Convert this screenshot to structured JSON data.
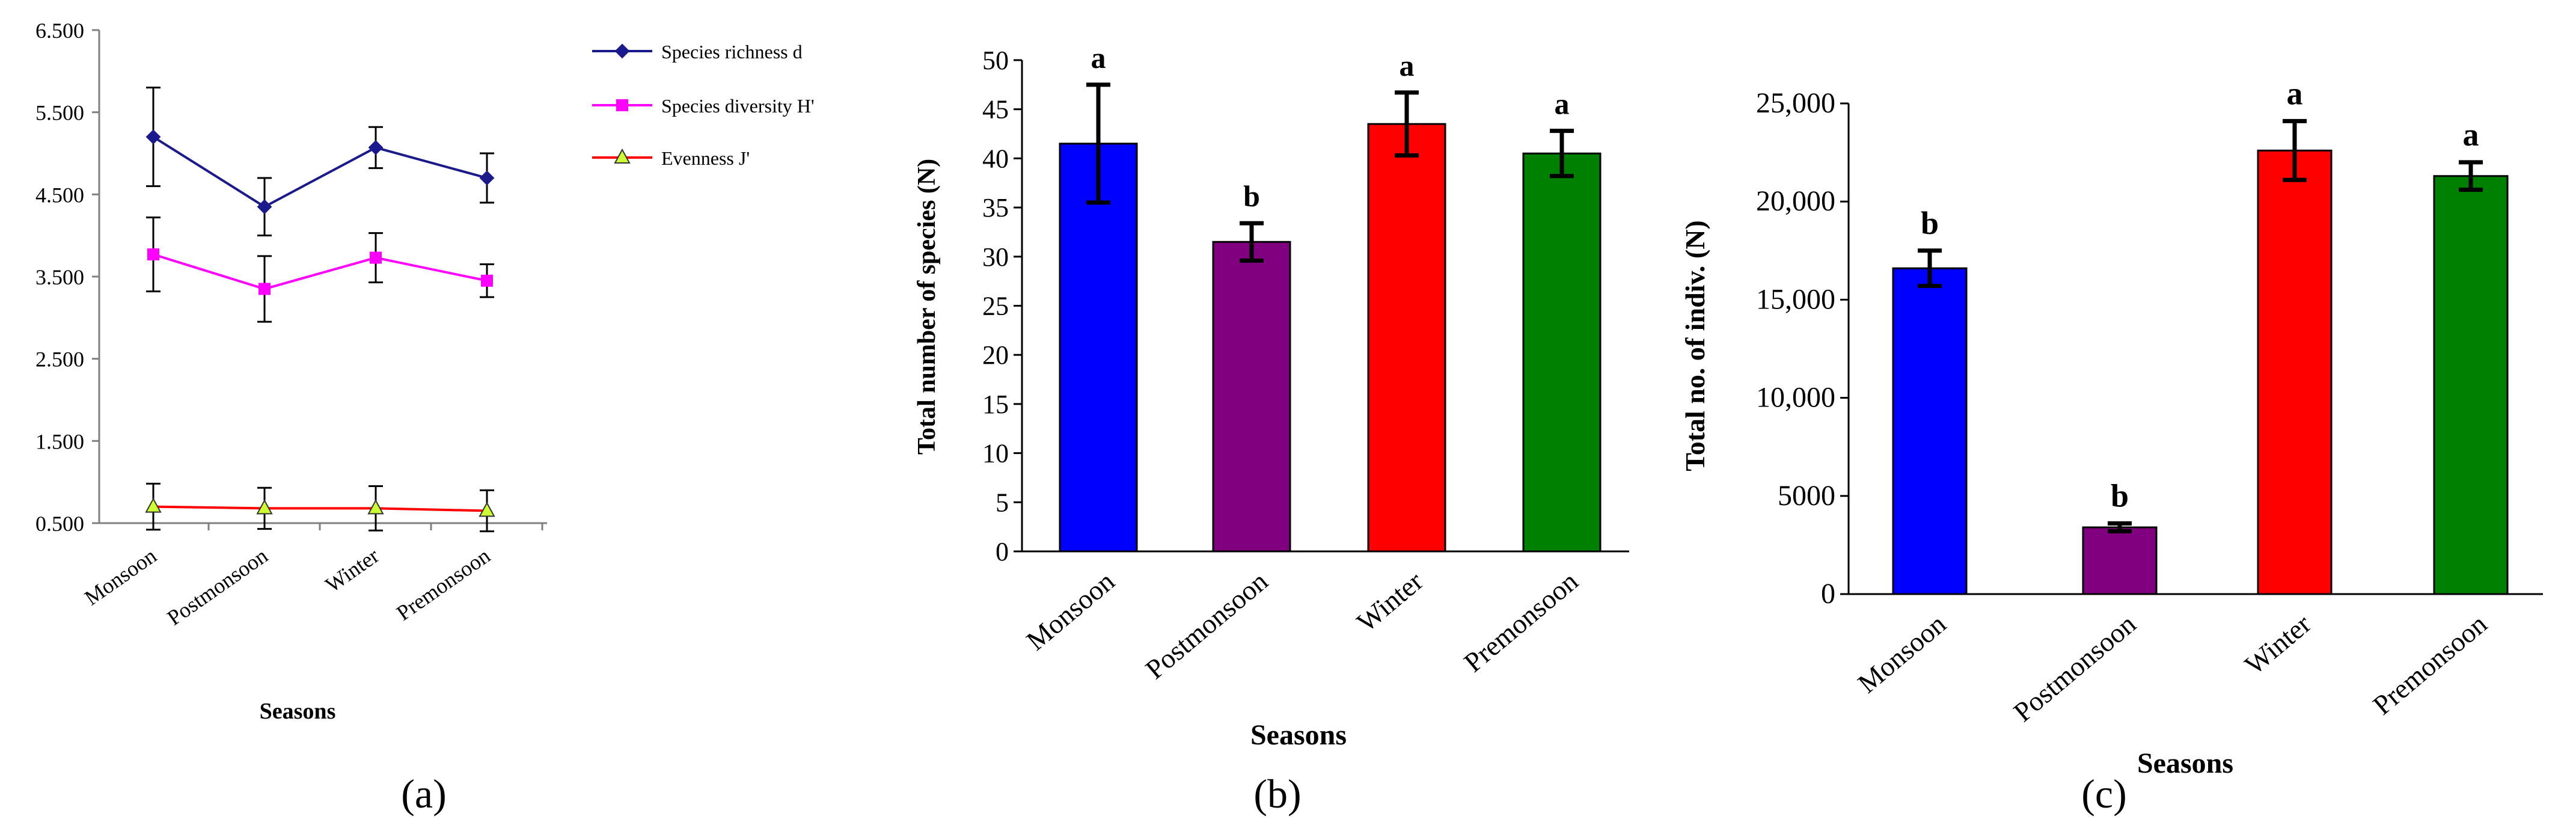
{
  "panel_labels": [
    "(a)",
    "(b)",
    "(c)"
  ],
  "chart_data": [
    {
      "type": "line",
      "panel": "(a)",
      "title": "",
      "xlabel": "Seasons",
      "ylabel": "",
      "categories": [
        "Monsoon",
        "Postmonsoon",
        "Winter",
        "Premonsoon"
      ],
      "ylim": [
        0.5,
        6.5
      ],
      "yticks": [
        "0.500",
        "1.500",
        "2.500",
        "3.500",
        "4.500",
        "5.500",
        "6.500"
      ],
      "ytick_values": [
        0.5,
        1.5,
        2.5,
        3.5,
        4.5,
        5.5,
        6.5
      ],
      "legend_position": "top-right",
      "series": [
        {
          "name": "Species richness d",
          "color": "#1a1a8c",
          "marker": "diamond",
          "values": [
            5.2,
            4.35,
            5.07,
            4.7
          ],
          "errors": [
            0.6,
            0.35,
            0.25,
            0.3
          ]
        },
        {
          "name": "Species diversity H'",
          "color": "#ff00ff",
          "marker": "square",
          "values": [
            3.77,
            3.35,
            3.73,
            3.45
          ],
          "errors": [
            0.45,
            0.4,
            0.3,
            0.2
          ]
        },
        {
          "name": "Evenness J'",
          "color": "#ff0000",
          "marker": "triangle",
          "marker_fill": "#ccff33",
          "values": [
            0.7,
            0.68,
            0.68,
            0.65
          ],
          "errors": [
            0.28,
            0.25,
            0.27,
            0.25
          ]
        }
      ]
    },
    {
      "type": "bar",
      "panel": "(b)",
      "title": "",
      "xlabel": "Seasons",
      "ylabel": "Total number of species (N)",
      "categories": [
        "Monsoon",
        "Postmonsoon",
        "Winter",
        "Premonsoon"
      ],
      "values": [
        41.5,
        31.5,
        43.5,
        40.5
      ],
      "errors": [
        6.0,
        1.9,
        3.2,
        2.3
      ],
      "letters": [
        "a",
        "b",
        "a",
        "a"
      ],
      "colors": [
        "#0000ff",
        "#800080",
        "#ff0000",
        "#008000"
      ],
      "ylim": [
        0,
        50
      ],
      "yticks": [
        "0",
        "5",
        "10",
        "15",
        "20",
        "25",
        "30",
        "35",
        "40",
        "45",
        "50"
      ],
      "ytick_values": [
        0,
        5,
        10,
        15,
        20,
        25,
        30,
        35,
        40,
        45,
        50
      ]
    },
    {
      "type": "bar",
      "panel": "(c)",
      "title": "",
      "xlabel": "Seasons",
      "ylabel": "Total no. of indiv. (N)",
      "categories": [
        "Monsoon",
        "Postmonsoon",
        "Winter",
        "Premonsoon"
      ],
      "values": [
        16600,
        3400,
        22600,
        21300
      ],
      "errors": [
        900,
        200,
        1500,
        700
      ],
      "letters": [
        "b",
        "b",
        "a",
        "a"
      ],
      "colors": [
        "#0000ff",
        "#800080",
        "#ff0000",
        "#008000"
      ],
      "ylim": [
        0,
        25000
      ],
      "yticks": [
        "0",
        "5000",
        "10,000",
        "15,000",
        "20,000",
        "25,000"
      ],
      "ytick_values": [
        0,
        5000,
        10000,
        15000,
        20000,
        25000
      ]
    }
  ]
}
